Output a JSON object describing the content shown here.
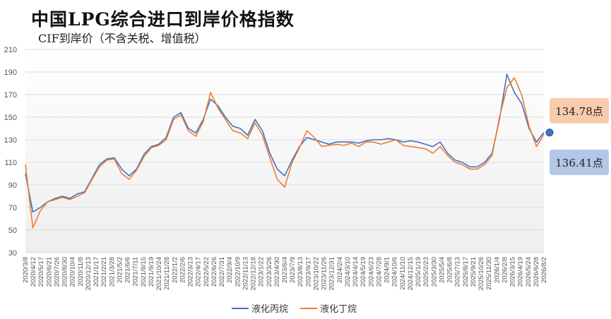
{
  "title": "中国LPG综合进口到岸价格指数",
  "subtitle": "CIF到岸价（不含关税、增值税）",
  "colors": {
    "propane": "#4472c4",
    "butane": "#ed7d31",
    "grid": "#dddddd",
    "callout_orange": "#f8cbad",
    "callout_blue": "#b4c7e7",
    "end_marker": "#4472c4"
  },
  "callouts": {
    "butane_latest": "134.78点",
    "propane_latest": "136.41点"
  },
  "chart_data": {
    "type": "line",
    "title": "中国LPG综合进口到岸价格指数",
    "subtitle": "CIF到岸价（不含关税、增值税）",
    "xlabel": "",
    "ylabel": "",
    "ylim": [
      30,
      210
    ],
    "yticks": [
      30,
      50,
      70,
      90,
      110,
      130,
      150,
      170,
      190,
      210
    ],
    "grid": "horizontal",
    "legend": "bottom",
    "x_tick_labels": [
      "2020/3/8",
      "2020/4/12",
      "2020/5/17",
      "2020/6/21",
      "2020/7/26",
      "2020/8/30",
      "2020/10/4",
      "2020/11/8",
      "2020/12/13",
      "2021/1/17",
      "2021/2/21",
      "2021/3/28",
      "2021/5/2",
      "2021/6/6",
      "2021/7/11",
      "2021/8/15",
      "2021/9/19",
      "2021/10/24",
      "2021/11/28",
      "2022/1/2",
      "2022/2/6",
      "2022/3/13",
      "2022/4/17",
      "2022/5/22",
      "2022/6/26",
      "2022/7/31",
      "2022/9/4",
      "2022/10/9",
      "2022/11/13",
      "2022/12/18",
      "2023/1/22",
      "2023/3/26",
      "2023/4/30",
      "2023/6/4",
      "2023/7/9",
      "2023/8/13",
      "2023/9/17",
      "2023/10/22",
      "2023/11/26",
      "2023/12/31",
      "2024/2/4",
      "2024/3/10",
      "2024/4/14",
      "2024/5/19",
      "2024/6/23",
      "2024/7/28",
      "2024/9/1",
      "2024/10/6",
      "2024/11/10",
      "2024/12/15",
      "2025/1/19",
      "2025/2/23",
      "2025/3/30",
      "2025/5/4",
      "2025/6/8",
      "2025/7/13",
      "2025/8/17",
      "2025/9/21",
      "2025/10/26",
      "2025/11/30",
      "2026/1/4",
      "2026/2/8",
      "2026/3/15",
      "2026/4/19",
      "2026/5/24",
      "2026/6/28",
      "2026/8/2"
    ],
    "series": [
      {
        "name": "液化丙烷",
        "color": "#4472c4",
        "latest": 136.41,
        "values": [
          100,
          66,
          70,
          75,
          78,
          80,
          78,
          82,
          84,
          96,
          108,
          113,
          114,
          104,
          98,
          104,
          117,
          124,
          126,
          132,
          150,
          154,
          140,
          136,
          148,
          166,
          160,
          150,
          142,
          140,
          134,
          148,
          138,
          118,
          104,
          98,
          112,
          124,
          132,
          130,
          128,
          126,
          128,
          128,
          128,
          127,
          129,
          130,
          130,
          131,
          130,
          128,
          129,
          128,
          126,
          124,
          128,
          118,
          112,
          110,
          106,
          106,
          110,
          118,
          148,
          188,
          172,
          162,
          140,
          128,
          136.41
        ]
      },
      {
        "name": "液化丁烷",
        "color": "#ed7d31",
        "latest": 134.78,
        "values": [
          108,
          52,
          67,
          75,
          77,
          79,
          77,
          80,
          83,
          95,
          106,
          112,
          113,
          100,
          95,
          103,
          115,
          123,
          125,
          130,
          148,
          152,
          138,
          133,
          146,
          172,
          158,
          148,
          138,
          136,
          131,
          145,
          134,
          114,
          95,
          88,
          110,
          123,
          138,
          132,
          124,
          125,
          126,
          125,
          127,
          124,
          128,
          128,
          126,
          128,
          130,
          125,
          124,
          123,
          122,
          118,
          124,
          116,
          110,
          108,
          104,
          104,
          108,
          116,
          150,
          176,
          185,
          170,
          142,
          124,
          134.78
        ]
      }
    ]
  },
  "legend_items": [
    {
      "label": "液化丙烷"
    },
    {
      "label": "液化丁烷"
    }
  ]
}
